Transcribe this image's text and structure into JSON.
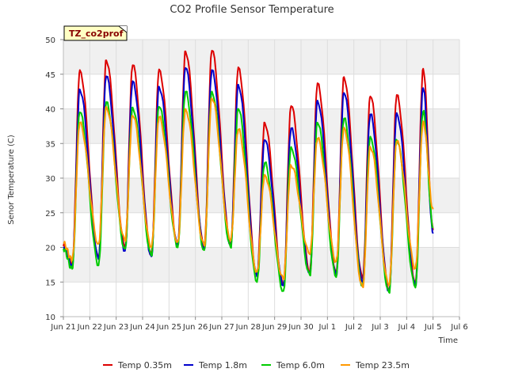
{
  "chart_data": {
    "type": "line",
    "title": "CO2 Profile Sensor Temperature",
    "xlabel": "Time",
    "ylabel": "Senor Temperature (C)",
    "annotation": "TZ_co2prof",
    "ylim": [
      10,
      50
    ],
    "yticks": [
      10,
      15,
      20,
      25,
      30,
      35,
      40,
      45,
      50
    ],
    "xlim": [
      "2024-06-21",
      "2024-07-06"
    ],
    "xticks": [
      {
        "date": "2024-06-21",
        "label": "Jun 21"
      },
      {
        "date": "2024-06-22",
        "label": "Jun 22"
      },
      {
        "date": "2024-06-23",
        "label": "Jun 23"
      },
      {
        "date": "2024-06-24",
        "label": "Jun 24"
      },
      {
        "date": "2024-06-25",
        "label": "Jun 25"
      },
      {
        "date": "2024-06-26",
        "label": "Jun 26"
      },
      {
        "date": "2024-06-27",
        "label": "Jun 27"
      },
      {
        "date": "2024-06-28",
        "label": "Jun 28"
      },
      {
        "date": "2024-06-29",
        "label": "Jun 29"
      },
      {
        "date": "2024-06-30",
        "label": "Jun 30"
      },
      {
        "date": "2024-07-01",
        "label": "Jul 1"
      },
      {
        "date": "2024-07-02",
        "label": "Jul 2"
      },
      {
        "date": "2024-07-03",
        "label": "Jul 3"
      },
      {
        "date": "2024-07-04",
        "label": "Jul 4"
      },
      {
        "date": "2024-07-05",
        "label": "Jul 5"
      },
      {
        "date": "2024-07-06",
        "label": "Jul 6"
      }
    ],
    "grid": true,
    "legend_position": "bottom",
    "series": [
      {
        "name": "Temp 0.35m",
        "color": "#dd0000",
        "points": [
          [
            "2024-06-21 00:00",
            20.2
          ],
          [
            "2024-06-21 08:00",
            17.6
          ],
          [
            "2024-06-21 15:00",
            45.6
          ],
          [
            "2024-06-22 08:00",
            18.5
          ],
          [
            "2024-06-22 15:00",
            47.0
          ],
          [
            "2024-06-23 08:00",
            20.0
          ],
          [
            "2024-06-23 15:00",
            46.3
          ],
          [
            "2024-06-24 08:00",
            19.0
          ],
          [
            "2024-06-24 15:00",
            45.7
          ],
          [
            "2024-06-25 08:00",
            20.5
          ],
          [
            "2024-06-25 15:00",
            48.3
          ],
          [
            "2024-06-26 08:00",
            20.0
          ],
          [
            "2024-06-26 15:00",
            48.4
          ],
          [
            "2024-06-27 08:00",
            20.5
          ],
          [
            "2024-06-27 15:00",
            46.0
          ],
          [
            "2024-06-28 08:00",
            16.0
          ],
          [
            "2024-06-28 15:00",
            38.0
          ],
          [
            "2024-06-29 08:00",
            14.5
          ],
          [
            "2024-06-29 15:00",
            40.4
          ],
          [
            "2024-06-30 08:00",
            16.5
          ],
          [
            "2024-06-30 15:00",
            43.7
          ],
          [
            "2024-07-01 08:00",
            16.5
          ],
          [
            "2024-07-01 15:00",
            44.6
          ],
          [
            "2024-07-02 08:00",
            15.5
          ],
          [
            "2024-07-02 15:00",
            41.8
          ],
          [
            "2024-07-03 08:00",
            13.8
          ],
          [
            "2024-07-03 15:00",
            42.0
          ],
          [
            "2024-07-04 08:00",
            15.0
          ],
          [
            "2024-07-04 15:00",
            45.8
          ],
          [
            "2024-07-05 00:00",
            22.5
          ]
        ]
      },
      {
        "name": "Temp 1.8m",
        "color": "#0000cc",
        "points": [
          [
            "2024-06-21 00:00",
            20.0
          ],
          [
            "2024-06-21 08:00",
            17.4
          ],
          [
            "2024-06-21 15:00",
            42.8
          ],
          [
            "2024-06-22 08:00",
            18.3
          ],
          [
            "2024-06-22 15:00",
            44.7
          ],
          [
            "2024-06-23 08:00",
            19.5
          ],
          [
            "2024-06-23 15:00",
            44.0
          ],
          [
            "2024-06-24 08:00",
            18.7
          ],
          [
            "2024-06-24 15:00",
            43.2
          ],
          [
            "2024-06-25 08:00",
            20.3
          ],
          [
            "2024-06-25 15:00",
            45.9
          ],
          [
            "2024-06-26 08:00",
            19.8
          ],
          [
            "2024-06-26 15:00",
            45.6
          ],
          [
            "2024-06-27 08:00",
            20.3
          ],
          [
            "2024-06-27 15:00",
            43.5
          ],
          [
            "2024-06-28 08:00",
            15.8
          ],
          [
            "2024-06-28 15:00",
            35.5
          ],
          [
            "2024-06-29 08:00",
            14.5
          ],
          [
            "2024-06-29 15:00",
            37.2
          ],
          [
            "2024-06-30 08:00",
            16.3
          ],
          [
            "2024-06-30 15:00",
            41.2
          ],
          [
            "2024-07-01 08:00",
            16.0
          ],
          [
            "2024-07-01 15:00",
            42.3
          ],
          [
            "2024-07-02 08:00",
            15.0
          ],
          [
            "2024-07-02 15:00",
            39.2
          ],
          [
            "2024-07-03 08:00",
            13.7
          ],
          [
            "2024-07-03 15:00",
            39.4
          ],
          [
            "2024-07-04 08:00",
            14.5
          ],
          [
            "2024-07-04 15:00",
            43.0
          ],
          [
            "2024-07-05 00:00",
            22.0
          ]
        ]
      },
      {
        "name": "Temp 6.0m",
        "color": "#00cc00",
        "points": [
          [
            "2024-06-21 00:00",
            19.8
          ],
          [
            "2024-06-21 08:00",
            16.9
          ],
          [
            "2024-06-21 15:00",
            39.5
          ],
          [
            "2024-06-22 08:00",
            17.4
          ],
          [
            "2024-06-22 15:00",
            41.0
          ],
          [
            "2024-06-23 08:00",
            19.8
          ],
          [
            "2024-06-23 15:00",
            40.2
          ],
          [
            "2024-06-24 08:00",
            18.8
          ],
          [
            "2024-06-24 15:00",
            40.3
          ],
          [
            "2024-06-25 08:00",
            20.0
          ],
          [
            "2024-06-25 15:00",
            42.5
          ],
          [
            "2024-06-26 08:00",
            19.6
          ],
          [
            "2024-06-26 15:00",
            42.5
          ],
          [
            "2024-06-27 08:00",
            20.0
          ],
          [
            "2024-06-27 15:00",
            40.0
          ],
          [
            "2024-06-28 08:00",
            15.0
          ],
          [
            "2024-06-28 15:00",
            32.2
          ],
          [
            "2024-06-29 08:00",
            13.7
          ],
          [
            "2024-06-29 15:00",
            34.5
          ],
          [
            "2024-06-30 08:00",
            16.0
          ],
          [
            "2024-06-30 15:00",
            38.0
          ],
          [
            "2024-07-01 08:00",
            15.7
          ],
          [
            "2024-07-01 15:00",
            38.6
          ],
          [
            "2024-07-02 08:00",
            14.5
          ],
          [
            "2024-07-02 15:00",
            36.0
          ],
          [
            "2024-07-03 08:00",
            13.5
          ],
          [
            "2024-07-03 15:00",
            35.5
          ],
          [
            "2024-07-04 08:00",
            14.2
          ],
          [
            "2024-07-04 15:00",
            39.6
          ],
          [
            "2024-07-05 00:00",
            23.0
          ]
        ]
      },
      {
        "name": "Temp 23.5m",
        "color": "#ff9900",
        "points": [
          [
            "2024-06-21 00:00",
            20.6
          ],
          [
            "2024-06-21 08:00",
            18.2
          ],
          [
            "2024-06-21 15:00",
            38.0
          ],
          [
            "2024-06-22 08:00",
            20.5
          ],
          [
            "2024-06-22 15:00",
            40.3
          ],
          [
            "2024-06-23 08:00",
            21.0
          ],
          [
            "2024-06-23 15:00",
            39.0
          ],
          [
            "2024-06-24 08:00",
            20.0
          ],
          [
            "2024-06-24 15:00",
            38.8
          ],
          [
            "2024-06-25 08:00",
            20.8
          ],
          [
            "2024-06-25 15:00",
            40.0
          ],
          [
            "2024-06-26 08:00",
            20.3
          ],
          [
            "2024-06-26 15:00",
            41.5
          ],
          [
            "2024-06-27 08:00",
            21.0
          ],
          [
            "2024-06-27 15:00",
            37.0
          ],
          [
            "2024-06-28 08:00",
            16.5
          ],
          [
            "2024-06-28 15:00",
            30.5
          ],
          [
            "2024-06-29 08:00",
            15.5
          ],
          [
            "2024-06-29 15:00",
            31.8
          ],
          [
            "2024-06-30 08:00",
            19.0
          ],
          [
            "2024-06-30 15:00",
            35.7
          ],
          [
            "2024-07-01 08:00",
            18.0
          ],
          [
            "2024-07-01 15:00",
            37.3
          ],
          [
            "2024-07-02 08:00",
            14.3
          ],
          [
            "2024-07-02 15:00",
            34.5
          ],
          [
            "2024-07-03 08:00",
            14.5
          ],
          [
            "2024-07-03 15:00",
            35.3
          ],
          [
            "2024-07-04 08:00",
            17.0
          ],
          [
            "2024-07-04 15:00",
            38.2
          ],
          [
            "2024-07-05 00:00",
            25.5
          ]
        ]
      }
    ]
  }
}
